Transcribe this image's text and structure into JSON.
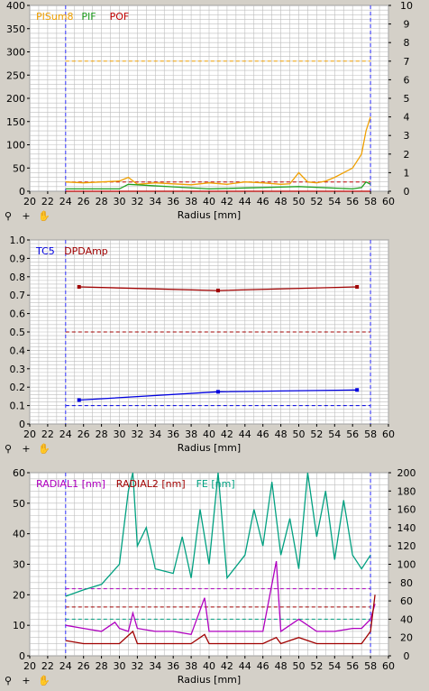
{
  "colors": {
    "orange": "#f0a000",
    "green": "#20a020",
    "crimson": "#c00000",
    "blue": "#0000e0",
    "darkred": "#a00000",
    "purple": "#b000c0",
    "teal": "#00a080",
    "grid": "#bdbdbd",
    "bg": "#d4d0c8",
    "plot": "#ffffff"
  },
  "toolbar_icons": [
    "zoom-icon",
    "crosshair-icon",
    "pan-hand-icon"
  ],
  "chart_data": [
    {
      "type": "line",
      "xlabel": "Radius [mm]",
      "xlim": [
        20,
        60
      ],
      "xticks": [
        20,
        22,
        24,
        26,
        28,
        30,
        32,
        34,
        36,
        38,
        40,
        42,
        44,
        46,
        48,
        50,
        52,
        54,
        56,
        58,
        60
      ],
      "ylim": [
        0,
        400
      ],
      "yticks": [
        0,
        50,
        100,
        150,
        200,
        250,
        300,
        350,
        400
      ],
      "y2lim": [
        0,
        10
      ],
      "y2ticks": [
        0,
        1,
        2,
        3,
        4,
        5,
        6,
        7,
        8,
        9,
        10
      ],
      "grid": true,
      "legend_position": "top-left",
      "markers": [
        24,
        58
      ],
      "series": [
        {
          "name": "PISum8",
          "color": "#f0a000",
          "x": [
            24,
            26,
            28,
            30,
            31,
            32,
            34,
            36,
            38,
            40,
            42,
            44,
            46,
            48,
            49,
            50,
            51,
            52,
            53,
            54,
            55,
            56,
            57,
            57.5,
            58
          ],
          "y": [
            20,
            18,
            20,
            22,
            30,
            15,
            18,
            16,
            14,
            18,
            15,
            20,
            18,
            15,
            16,
            40,
            20,
            18,
            22,
            30,
            40,
            50,
            80,
            130,
            160
          ]
        },
        {
          "name": "PIF",
          "color": "#20a020",
          "x": [
            24,
            30,
            31,
            40,
            50,
            56,
            57,
            57.5,
            58
          ],
          "y": [
            5,
            5,
            15,
            5,
            10,
            5,
            8,
            20,
            15
          ]
        },
        {
          "name": "POF",
          "color": "#c00000",
          "x": [
            24,
            58
          ],
          "y": [
            0,
            0
          ]
        }
      ],
      "thresholds": [
        {
          "color": "#f0a000",
          "y": 280
        },
        {
          "color": "#c00000",
          "y": 20
        }
      ]
    },
    {
      "type": "line",
      "xlabel": "Radius [mm]",
      "xlim": [
        20,
        60
      ],
      "xticks": [
        20,
        22,
        24,
        26,
        28,
        30,
        32,
        34,
        36,
        38,
        40,
        42,
        44,
        46,
        48,
        50,
        52,
        54,
        56,
        58,
        60
      ],
      "ylim": [
        0,
        1
      ],
      "yticks": [
        "0",
        "0.1",
        "0.2",
        "0.3",
        "0.4",
        "0.5",
        "0.6",
        "0.7",
        "0.8",
        "0.9",
        "1.0"
      ],
      "grid": true,
      "legend_position": "top-left",
      "markers": [
        24,
        58
      ],
      "series": [
        {
          "name": "TC5",
          "color": "#0000e0",
          "x": [
            25.5,
            41,
            56.5
          ],
          "y": [
            0.13,
            0.175,
            0.185
          ]
        },
        {
          "name": "DPDAmp",
          "color": "#a00000",
          "x": [
            25.5,
            41,
            56.5
          ],
          "y": [
            0.745,
            0.725,
            0.745
          ]
        }
      ],
      "thresholds": [
        {
          "color": "#a00000",
          "y": 0.5
        },
        {
          "color": "#0000e0",
          "y": 0.1
        }
      ]
    },
    {
      "type": "line",
      "xlabel": "Radius [mm]",
      "xlim": [
        20,
        60
      ],
      "xticks": [
        20,
        22,
        24,
        26,
        28,
        30,
        32,
        34,
        36,
        38,
        40,
        42,
        44,
        46,
        48,
        50,
        52,
        54,
        56,
        58,
        60
      ],
      "ylim": [
        0,
        60
      ],
      "yticks": [
        0,
        10,
        20,
        30,
        40,
        50,
        60
      ],
      "y2lim": [
        0,
        200
      ],
      "y2ticks": [
        0,
        20,
        40,
        60,
        80,
        100,
        120,
        140,
        160,
        180,
        200
      ],
      "grid": true,
      "legend_position": "top-left",
      "markers": [
        24,
        58
      ],
      "series": [
        {
          "name": "RADIAL1 [nm]",
          "color": "#b000c0",
          "x": [
            24,
            26,
            28,
            29.5,
            30,
            31,
            31.5,
            32,
            34,
            36,
            38,
            39.5,
            40,
            42,
            44,
            46,
            47.5,
            48,
            50,
            52,
            54,
            56,
            57,
            58,
            58.5
          ],
          "y": [
            10,
            9,
            8,
            11,
            9,
            8,
            14,
            9,
            8,
            8,
            7,
            19,
            8,
            8,
            8,
            8,
            31,
            8,
            12,
            8,
            8,
            9,
            9,
            12,
            17
          ]
        },
        {
          "name": "RADIAL2 [nm]",
          "color": "#a00000",
          "x": [
            24,
            26,
            28,
            30,
            31.5,
            32,
            34,
            36,
            38,
            39.5,
            40,
            42,
            44,
            46,
            47.5,
            48,
            50,
            52,
            54,
            56,
            57,
            58,
            58.5
          ],
          "y": [
            5,
            4,
            4,
            4,
            8,
            4,
            4,
            4,
            4,
            7,
            4,
            4,
            4,
            4,
            6,
            4,
            6,
            4,
            4,
            4,
            4,
            8,
            20
          ]
        },
        {
          "name": "FE [nm]",
          "color": "#00a080",
          "x": [
            24,
            26,
            28,
            30,
            31,
            31.5,
            32,
            33,
            34,
            36,
            37,
            38,
            39,
            40,
            41,
            42,
            44,
            45,
            46,
            47,
            48,
            49,
            50,
            51,
            52,
            53,
            54,
            55,
            56,
            57,
            58
          ],
          "y": [
            65,
            72,
            78,
            100,
            180,
            200,
            120,
            140,
            95,
            90,
            130,
            85,
            160,
            100,
            200,
            85,
            110,
            160,
            120,
            190,
            110,
            150,
            95,
            200,
            130,
            180,
            105,
            170,
            110,
            95,
            110
          ]
        }
      ],
      "thresholds": [
        {
          "color": "#b000c0",
          "y": 22
        },
        {
          "color": "#a00000",
          "y": 16
        },
        {
          "color": "#00a080",
          "y": 40
        }
      ]
    }
  ]
}
